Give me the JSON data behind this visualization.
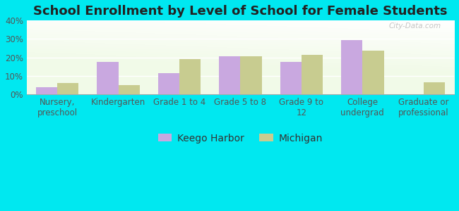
{
  "title": "School Enrollment by Level of School for Female Students",
  "categories": [
    "Nursery,\npreschool",
    "Kindergarten",
    "Grade 1 to 4",
    "Grade 5 to 8",
    "Grade 9 to\n12",
    "College\nundergrad",
    "Graduate or\nprofessional"
  ],
  "keego_harbor": [
    4.0,
    17.5,
    11.5,
    20.5,
    17.5,
    29.5,
    0.0
  ],
  "michigan": [
    6.0,
    5.0,
    19.0,
    20.5,
    21.5,
    23.5,
    6.5
  ],
  "keego_color": "#c9a8e0",
  "michigan_color": "#c8cc90",
  "background_outer": "#00e8f0",
  "background_inner": "#e8f5e0",
  "ylim": [
    0,
    40
  ],
  "yticks": [
    0,
    10,
    20,
    30,
    40
  ],
  "ytick_labels": [
    "0%",
    "10%",
    "20%",
    "30%",
    "40%"
  ],
  "legend_keego": "Keego Harbor",
  "legend_michigan": "Michigan",
  "bar_width": 0.35,
  "title_fontsize": 13,
  "tick_fontsize": 8.5,
  "legend_fontsize": 10
}
